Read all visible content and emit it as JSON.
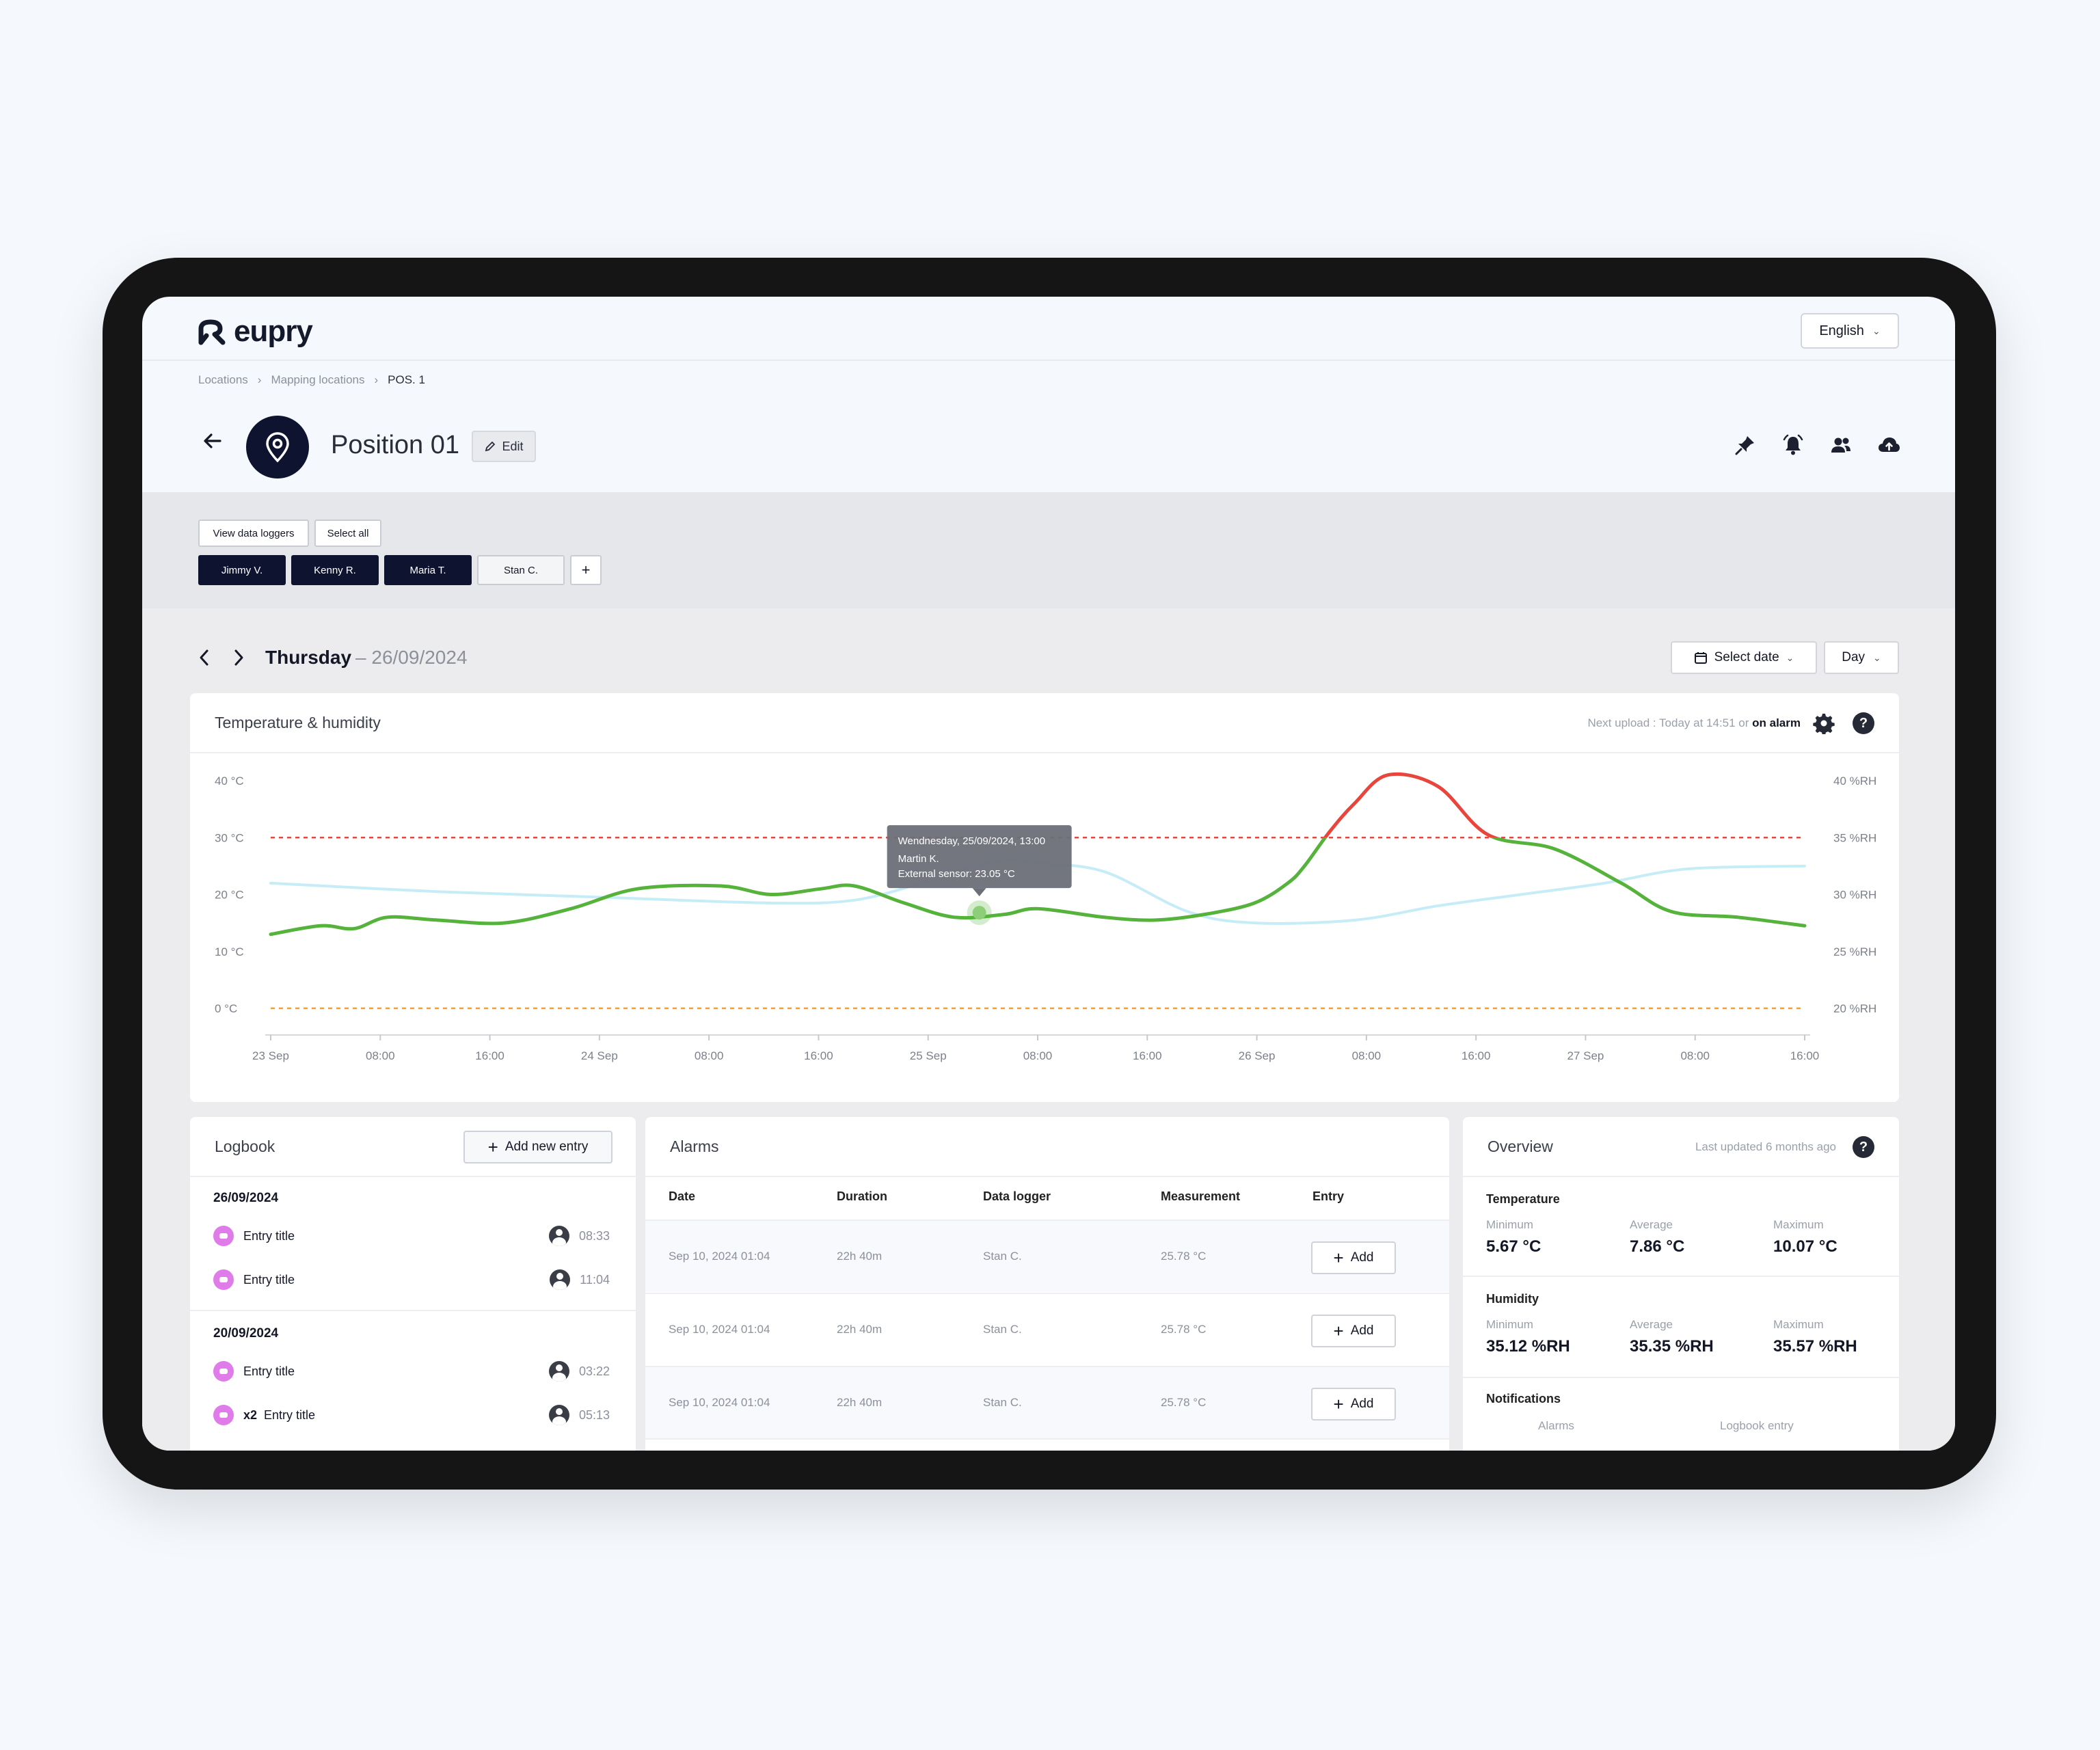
{
  "app": {
    "brand": "eupry",
    "language": "English",
    "breadcrumbs": [
      "Locations",
      "Mapping locations",
      "POS. 1"
    ],
    "position_title": "Position 01",
    "edit_label": "Edit",
    "action_icons": [
      "pin-icon",
      "bell-icon",
      "users-icon",
      "cloud-upload-icon"
    ]
  },
  "loggers": {
    "view_label": "View data loggers",
    "select_all_label": "Select all",
    "chips": [
      {
        "label": "Jimmy V.",
        "selected": true
      },
      {
        "label": "Kenny R.",
        "selected": true
      },
      {
        "label": "Maria T.",
        "selected": true
      },
      {
        "label": "Stan C.",
        "selected": false
      }
    ],
    "add_label": "+"
  },
  "daynav": {
    "day": "Thursday",
    "date": "– 26/09/2024",
    "select_date_label": "Select date",
    "period_label": "Day"
  },
  "chart_card": {
    "title": "Temperature & humidity",
    "next_upload_prefix": "Next upload : Today at 14:51 or ",
    "next_upload_bold": "on alarm",
    "help": "?"
  },
  "chart_data": {
    "type": "line",
    "y_left_ticks": [
      "40 °C",
      "30 °C",
      "20 °C",
      "10 °C",
      "0 °C"
    ],
    "y_right_ticks": [
      "40 %RH",
      "35 %RH",
      "30 %RH",
      "25 %RH",
      "20 %RH"
    ],
    "ylim_left": [
      0,
      40
    ],
    "ylim_right": [
      20,
      40
    ],
    "x_ticks": [
      "23 Sep",
      "08:00",
      "16:00",
      "24 Sep",
      "08:00",
      "16:00",
      "25 Sep",
      "08:00",
      "16:00",
      "26 Sep",
      "08:00",
      "16:00",
      "27 Sep",
      "08:00",
      "16:00"
    ],
    "thresholds": [
      {
        "value": 30,
        "color": "#e8453c",
        "style": "dashed"
      },
      {
        "value": 0,
        "color": "#f0a030",
        "style": "dashed"
      }
    ],
    "series": [
      {
        "color": "#55b33b",
        "alarm_color": "#e8453c",
        "x_hours": [
          0,
          6,
          10,
          14,
          20,
          28,
          36,
          44,
          54,
          60,
          66,
          70,
          76,
          82,
          88,
          92,
          100,
          106,
          112,
          118,
          122,
          124,
          127,
          130,
          134,
          140,
          146,
          154,
          162,
          168,
          176,
          184
        ],
        "values": [
          13,
          14.5,
          14,
          16,
          15.5,
          15,
          17.5,
          21,
          21.5,
          20,
          21,
          21.5,
          18.5,
          16,
          16.5,
          17.5,
          16,
          15.5,
          16.5,
          18.5,
          22,
          25,
          31,
          36,
          41,
          39,
          30.5,
          28,
          22,
          17,
          16,
          14.5
        ]
      },
      {
        "color": "#c6ecf7",
        "x_hours": [
          0,
          20,
          40,
          60,
          70,
          78,
          82,
          88,
          92,
          100,
          110,
          118,
          130,
          140,
          150,
          160,
          170,
          184
        ],
        "values": [
          22,
          20.5,
          19.5,
          18.5,
          19,
          22,
          24,
          26,
          25.5,
          24,
          17,
          15,
          15.5,
          18,
          20,
          22,
          24.5,
          25
        ]
      }
    ],
    "tooltip": {
      "line1": "Wendnesday, 25/09/2024, 13:00",
      "line2": "Martin K.",
      "line3": "External sensor: 23.05 °C",
      "x_hours": 85,
      "value": 16.8
    }
  },
  "logbook": {
    "title": "Logbook",
    "add_label": "Add new entry",
    "groups": [
      {
        "date": "26/09/2024",
        "items": [
          {
            "title": "Entry title",
            "time": "08:33",
            "multi": ""
          },
          {
            "title": "Entry title",
            "time": "11:04",
            "multi": ""
          }
        ]
      },
      {
        "date": "20/09/2024",
        "items": [
          {
            "title": "Entry title",
            "time": "03:22",
            "multi": ""
          },
          {
            "title": "Entry title",
            "time": "05:13",
            "multi": "x2"
          }
        ]
      }
    ]
  },
  "alarms": {
    "title": "Alarms",
    "columns": [
      "Date",
      "Duration",
      "Data logger",
      "Measurement",
      "Entry"
    ],
    "rows": [
      {
        "date": "Sep 10, 2024 01:04",
        "duration": "22h 40m",
        "logger": "Stan C.",
        "measurement": "25.78 °C",
        "entry": "Add"
      },
      {
        "date": "Sep 10, 2024 01:04",
        "duration": "22h 40m",
        "logger": "Stan C.",
        "measurement": "25.78 °C",
        "entry": "Add"
      },
      {
        "date": "Sep 10, 2024 01:04",
        "duration": "22h 40m",
        "logger": "Stan C.",
        "measurement": "25.78 °C",
        "entry": "Add"
      }
    ]
  },
  "overview": {
    "title": "Overview",
    "last_updated": "Last updated 6 months ago",
    "help": "?",
    "temperature": {
      "label": "Temperature",
      "min_label": "Minimum",
      "avg_label": "Average",
      "max_label": "Maximum",
      "min": "5.67 °C",
      "avg": "7.86 °C",
      "max": "10.07 °C"
    },
    "humidity": {
      "label": "Humidity",
      "min_label": "Minimum",
      "avg_label": "Average",
      "max_label": "Maximum",
      "min": "35.12 %RH",
      "avg": "35.35 %RH",
      "max": "35.57 %RH"
    },
    "notifications": {
      "label": "Notifications",
      "alarms_label": "Alarms",
      "logbook_label": "Logbook entry"
    }
  }
}
